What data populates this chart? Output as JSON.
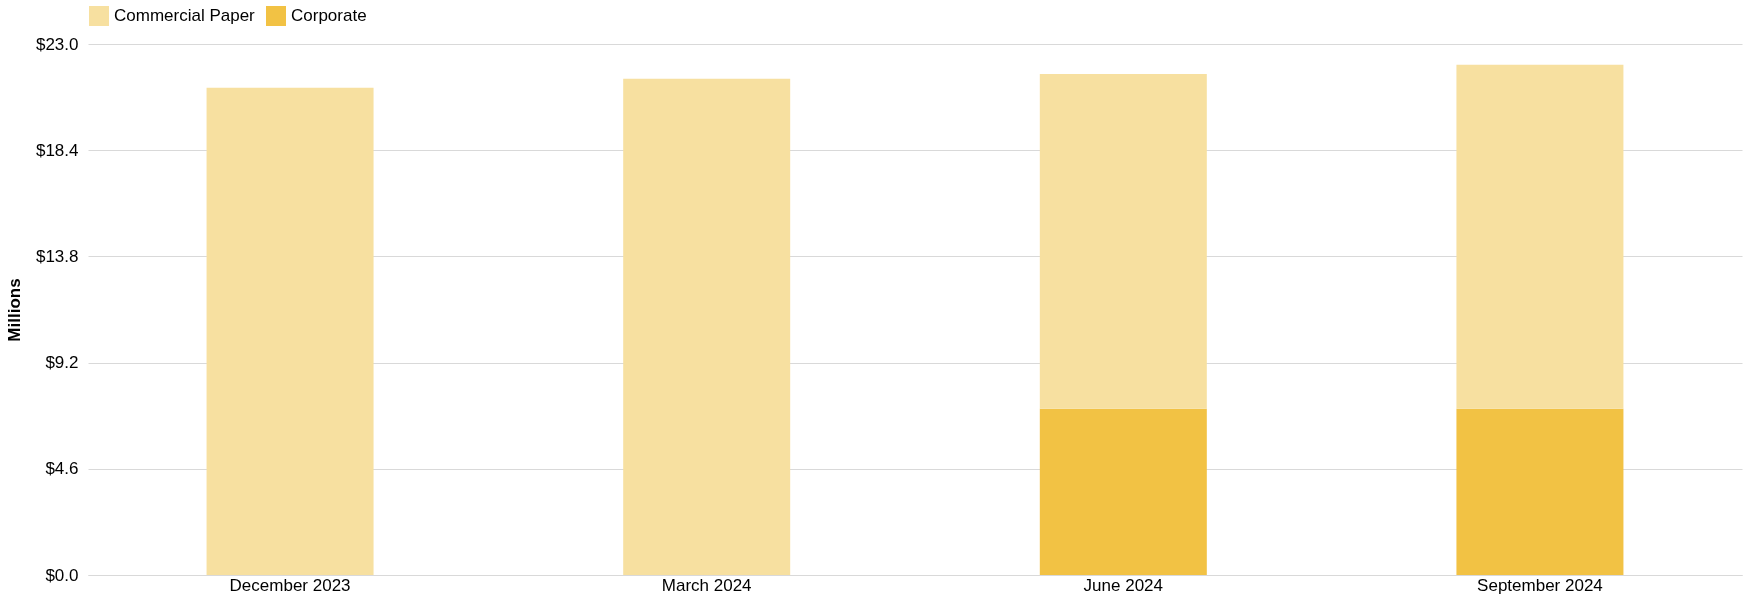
{
  "chart_data": {
    "type": "bar",
    "stacked": true,
    "ylabel": "Millions",
    "categories": [
      "December 2023",
      "March 2024",
      "June 2024",
      "September 2024"
    ],
    "series": [
      {
        "name": "Corporate",
        "color": "#f2c244",
        "values": [
          null,
          null,
          7.2,
          7.2
        ]
      },
      {
        "name": "Commercial Paper",
        "color": "#f7e0a0",
        "values": [
          21.1,
          21.5,
          14.5,
          14.9
        ]
      }
    ],
    "ylim": [
      0,
      23
    ],
    "yticks": [
      {
        "value": 0,
        "label": "$0.0"
      },
      {
        "value": 4.6,
        "label": "$4.6"
      },
      {
        "value": 9.2,
        "label": "$9.2"
      },
      {
        "value": 13.8,
        "label": "$13.8"
      },
      {
        "value": 18.4,
        "label": "$18.4"
      },
      {
        "value": 23,
        "label": "$23.0"
      }
    ],
    "grid": "y",
    "legend": "top"
  }
}
